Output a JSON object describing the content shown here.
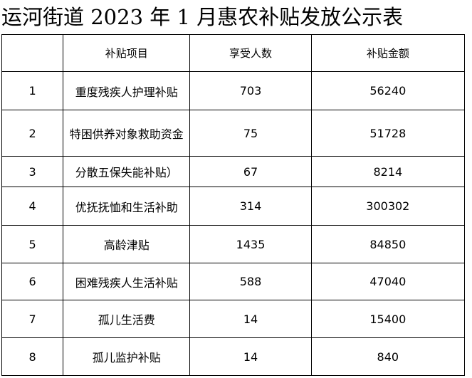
{
  "title": "运河街道 2023 年 1 月惠农补贴发放公示表",
  "table": {
    "headers": [
      "",
      "补贴项目",
      "享受人数",
      "补贴金额"
    ],
    "rows": [
      [
        "1",
        "重度残疾人护理补贴",
        "703",
        "56240"
      ],
      [
        "2",
        "特困供养对象救助资金",
        "75",
        "51728"
      ],
      [
        "3",
        "分散五保失能补贴）",
        "67",
        "8214"
      ],
      [
        "4",
        "优抚抚恤和生活补助",
        "314",
        "300302"
      ],
      [
        "5",
        "高龄津贴",
        "1435",
        "84850"
      ],
      [
        "6",
        "困难残疾人生活补贴",
        "588",
        "47040"
      ],
      [
        "7",
        "孤儿生活费",
        "14",
        "15400"
      ],
      [
        "8",
        "孤儿监护补贴",
        "14",
        "840"
      ]
    ]
  }
}
